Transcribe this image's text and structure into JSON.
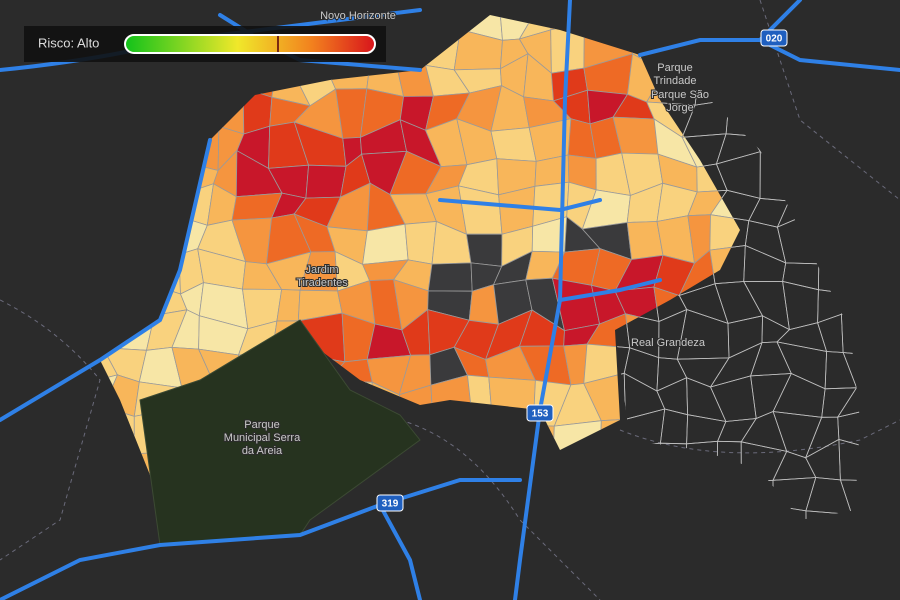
{
  "legend": {
    "label": "Risco: Alto"
  },
  "places": [
    {
      "lines": [
        "Novo Horizonte"
      ]
    },
    {
      "lines": [
        "Parque",
        "Trindade"
      ]
    },
    {
      "lines": [
        "Parque São",
        "Jorge"
      ]
    },
    {
      "lines": [
        "Real Grandeza"
      ]
    },
    {
      "lines": [
        "Parque",
        "Municipal Serra",
        "da Areia"
      ]
    },
    {
      "lines": [
        "Jardim",
        "Tiradentes"
      ]
    }
  ],
  "road_shields": [
    "020",
    "319",
    "153"
  ]
}
